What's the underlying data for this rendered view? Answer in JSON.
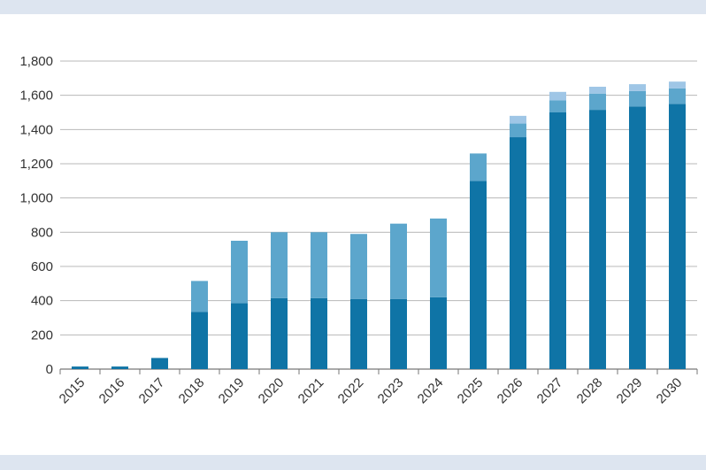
{
  "chart_data": {
    "type": "bar",
    "stacked": true,
    "categories": [
      "2015",
      "2016",
      "2017",
      "2018",
      "2019",
      "2020",
      "2021",
      "2022",
      "2023",
      "2024",
      "2025",
      "2026",
      "2027",
      "2028",
      "2029",
      "2030"
    ],
    "series": [
      {
        "values": [
          15,
          15,
          65,
          335,
          385,
          415,
          415,
          410,
          410,
          420,
          1100,
          1355,
          1500,
          1515,
          1535,
          1550
        ]
      },
      {
        "values": [
          0,
          0,
          0,
          180,
          365,
          385,
          385,
          380,
          440,
          460,
          160,
          80,
          70,
          95,
          90,
          90
        ]
      },
      {
        "values": [
          0,
          0,
          0,
          0,
          0,
          0,
          0,
          0,
          0,
          0,
          0,
          45,
          50,
          40,
          40,
          40
        ]
      }
    ],
    "colors": [
      "#0f74a6",
      "#5ca6cc",
      "#9fc6e6"
    ],
    "ylim": [
      0,
      1800
    ],
    "yticks": [
      0,
      200,
      400,
      600,
      800,
      1000,
      1200,
      1400,
      1600,
      1800
    ],
    "ytick_labels": [
      "0",
      "200",
      "400",
      "600",
      "800",
      "1,000",
      "1,200",
      "1,400",
      "1,600",
      "1,800"
    ],
    "grid": true,
    "title": "",
    "xlabel": "",
    "ylabel": ""
  }
}
